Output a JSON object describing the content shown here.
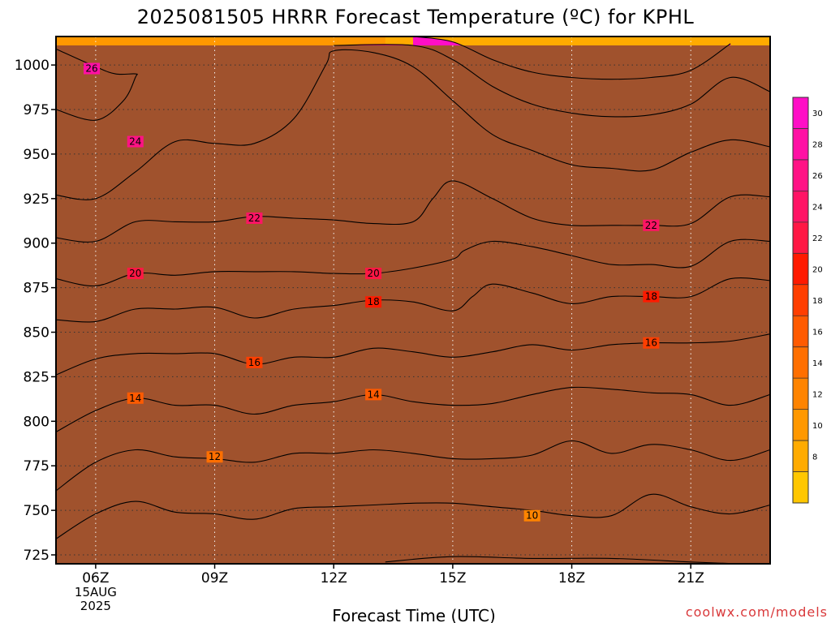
{
  "chart_data": {
    "type": "contour",
    "title": "2025081505 HRRR Forecast Temperature (ºC) for KPHL",
    "xlabel": "Forecast Time (UTC)",
    "ylabel": "",
    "credit": "coolwx.com/models",
    "x_ticks": [
      {
        "hour": 6,
        "label": "06Z",
        "sub": [
          "15AUG",
          "2025"
        ]
      },
      {
        "hour": 9,
        "label": "09Z"
      },
      {
        "hour": 12,
        "label": "12Z"
      },
      {
        "hour": 15,
        "label": "15Z"
      },
      {
        "hour": 18,
        "label": "18Z"
      },
      {
        "hour": 21,
        "label": "21Z"
      }
    ],
    "xlim": [
      5,
      23
    ],
    "y_ticks": [
      725,
      750,
      775,
      800,
      825,
      850,
      875,
      900,
      925,
      950,
      975,
      1000
    ],
    "ylim": [
      1016,
      720
    ],
    "y_units": "hPa (pressure level)",
    "grid": true,
    "colorbar": {
      "position": "right",
      "min": 6,
      "max": 32,
      "step": 2,
      "tick_labels": [
        8,
        10,
        12,
        14,
        16,
        18,
        20,
        22,
        24,
        26,
        28,
        30
      ],
      "colors": [
        "#ffc700",
        "#ffab00",
        "#ff9800",
        "#ff8400",
        "#ff6f00",
        "#ff5a00",
        "#ff3e00",
        "#ff1a00",
        "#ff1744",
        "#ff1465",
        "#ff1285",
        "#ff10a4",
        "#ff0ec6"
      ]
    },
    "contour_lines": [
      {
        "level": 8,
        "points": [
          [
            13.3,
            721
          ],
          [
            15,
            724
          ],
          [
            17,
            723
          ],
          [
            19,
            723
          ],
          [
            21,
            721
          ],
          [
            22.2,
            720
          ]
        ]
      },
      {
        "level": 10,
        "points": [
          [
            5,
            734
          ],
          [
            6,
            748
          ],
          [
            7,
            755
          ],
          [
            8,
            749
          ],
          [
            9,
            748
          ],
          [
            10,
            745
          ],
          [
            11,
            751
          ],
          [
            12,
            752
          ],
          [
            13,
            753
          ],
          [
            14,
            754
          ],
          [
            15,
            754
          ],
          [
            16,
            752
          ],
          [
            17,
            750
          ],
          [
            18,
            747
          ],
          [
            19,
            747
          ],
          [
            20,
            759
          ],
          [
            21,
            752
          ],
          [
            22,
            748
          ],
          [
            23,
            753
          ]
        ],
        "labels": [
          {
            "x": 17,
            "y": 747,
            "text": "10"
          }
        ]
      },
      {
        "level": 12,
        "points": [
          [
            5,
            761
          ],
          [
            6,
            777
          ],
          [
            7,
            784
          ],
          [
            8,
            780
          ],
          [
            9,
            779
          ],
          [
            10,
            777
          ],
          [
            11,
            782
          ],
          [
            12,
            782
          ],
          [
            13,
            784
          ],
          [
            14,
            782
          ],
          [
            15,
            779
          ],
          [
            16,
            779
          ],
          [
            17,
            781
          ],
          [
            18,
            789
          ],
          [
            19,
            782
          ],
          [
            20,
            787
          ],
          [
            21,
            784
          ],
          [
            22,
            778
          ],
          [
            23,
            784
          ]
        ],
        "labels": [
          {
            "x": 9,
            "y": 780,
            "text": "12"
          }
        ]
      },
      {
        "level": 14,
        "points": [
          [
            5,
            794
          ],
          [
            6,
            806
          ],
          [
            7,
            813
          ],
          [
            8,
            809
          ],
          [
            9,
            809
          ],
          [
            10,
            804
          ],
          [
            11,
            809
          ],
          [
            12,
            811
          ],
          [
            13,
            815
          ],
          [
            14,
            811
          ],
          [
            15,
            809
          ],
          [
            16,
            810
          ],
          [
            17,
            815
          ],
          [
            18,
            819
          ],
          [
            19,
            818
          ],
          [
            20,
            816
          ],
          [
            21,
            815
          ],
          [
            22,
            809
          ],
          [
            23,
            815
          ]
        ],
        "labels": [
          {
            "x": 7,
            "y": 813,
            "text": "14"
          },
          {
            "x": 13,
            "y": 815,
            "text": "14"
          }
        ]
      },
      {
        "level": 16,
        "points": [
          [
            5,
            826
          ],
          [
            6,
            835
          ],
          [
            7,
            838
          ],
          [
            8,
            838
          ],
          [
            9,
            838
          ],
          [
            10,
            832
          ],
          [
            11,
            836
          ],
          [
            12,
            836
          ],
          [
            13,
            841
          ],
          [
            14,
            839
          ],
          [
            15,
            836
          ],
          [
            16,
            839
          ],
          [
            17,
            843
          ],
          [
            18,
            840
          ],
          [
            19,
            843
          ],
          [
            20,
            844
          ],
          [
            21,
            844
          ],
          [
            22,
            845
          ],
          [
            23,
            849
          ]
        ],
        "labels": [
          {
            "x": 10,
            "y": 833,
            "text": "16"
          },
          {
            "x": 20,
            "y": 844,
            "text": "16"
          }
        ]
      },
      {
        "level": 18,
        "points": [
          [
            5,
            857
          ],
          [
            6,
            856
          ],
          [
            7,
            863
          ],
          [
            8,
            863
          ],
          [
            9,
            864
          ],
          [
            10,
            858
          ],
          [
            11,
            863
          ],
          [
            12,
            865
          ],
          [
            13,
            868
          ],
          [
            14,
            867
          ],
          [
            15,
            862
          ],
          [
            15.5,
            870
          ],
          [
            16,
            877
          ],
          [
            17,
            872
          ],
          [
            18,
            866
          ],
          [
            19,
            870
          ],
          [
            20,
            870
          ],
          [
            21,
            870
          ],
          [
            22,
            880
          ],
          [
            23,
            879
          ]
        ],
        "labels": [
          {
            "x": 13,
            "y": 867,
            "text": "18"
          },
          {
            "x": 20,
            "y": 870,
            "text": "18"
          }
        ]
      },
      {
        "level": 20,
        "points": [
          [
            5,
            880
          ],
          [
            6,
            876
          ],
          [
            7,
            883
          ],
          [
            8,
            882
          ],
          [
            9,
            884
          ],
          [
            10,
            884
          ],
          [
            11,
            884
          ],
          [
            12,
            883
          ],
          [
            13,
            883
          ],
          [
            14,
            886
          ],
          [
            15,
            891
          ],
          [
            15.3,
            896
          ],
          [
            16,
            901
          ],
          [
            17,
            898
          ],
          [
            18,
            893
          ],
          [
            19,
            888
          ],
          [
            20,
            888
          ],
          [
            21,
            887
          ],
          [
            22,
            901
          ],
          [
            23,
            901
          ]
        ],
        "labels": [
          {
            "x": 7,
            "y": 883,
            "text": "20"
          },
          {
            "x": 13,
            "y": 883,
            "text": "20"
          }
        ]
      },
      {
        "level": 22,
        "points": [
          [
            5,
            903
          ],
          [
            6,
            901
          ],
          [
            7,
            912
          ],
          [
            8,
            912
          ],
          [
            9,
            912
          ],
          [
            10,
            915
          ],
          [
            11,
            914
          ],
          [
            12,
            913
          ],
          [
            13,
            911
          ],
          [
            14,
            912
          ],
          [
            14.5,
            925
          ],
          [
            15,
            935
          ],
          [
            16,
            925
          ],
          [
            17,
            914
          ],
          [
            18,
            910
          ],
          [
            19,
            910
          ],
          [
            20,
            910
          ],
          [
            21,
            911
          ],
          [
            22,
            926
          ],
          [
            23,
            926
          ]
        ],
        "labels": [
          {
            "x": 10,
            "y": 914,
            "text": "22"
          },
          {
            "x": 20,
            "y": 910,
            "text": "22"
          }
        ]
      },
      {
        "level": 24,
        "points": [
          [
            5,
            927
          ],
          [
            6,
            925
          ],
          [
            7,
            940
          ],
          [
            8,
            957
          ],
          [
            9,
            956
          ],
          [
            10,
            956
          ],
          [
            11,
            970
          ],
          [
            11.8,
            1000
          ],
          [
            12,
            1008
          ],
          [
            13,
            1007
          ],
          [
            14,
            999
          ],
          [
            15,
            980
          ],
          [
            16,
            961
          ],
          [
            17,
            952
          ],
          [
            18,
            944
          ],
          [
            19,
            942
          ],
          [
            20,
            941
          ],
          [
            21,
            951
          ],
          [
            22,
            958
          ],
          [
            23,
            954
          ]
        ],
        "labels": [
          {
            "x": 7,
            "y": 957,
            "text": "24"
          }
        ]
      },
      {
        "level": 26,
        "points": [
          [
            5,
            975
          ],
          [
            6,
            969
          ],
          [
            6.7,
            980
          ],
          [
            7,
            993
          ],
          [
            7,
            995
          ],
          [
            6.5,
            995
          ],
          [
            6,
            999
          ],
          [
            5,
            1009
          ]
        ],
        "labels": [
          {
            "x": 5.9,
            "y": 998,
            "text": "26"
          }
        ]
      },
      {
        "level": 26,
        "points": [
          [
            12,
            1011
          ],
          [
            14,
            1011
          ],
          [
            15,
            1003
          ],
          [
            16,
            988
          ],
          [
            17,
            978
          ],
          [
            18,
            973
          ],
          [
            19,
            971
          ],
          [
            20,
            972
          ],
          [
            21,
            978
          ],
          [
            22,
            993
          ],
          [
            23,
            985
          ]
        ]
      },
      {
        "level": 28,
        "points": [
          [
            14,
            1016
          ],
          [
            15,
            1013
          ],
          [
            16,
            1003
          ],
          [
            17,
            996
          ],
          [
            18,
            993
          ],
          [
            19,
            992
          ],
          [
            20,
            993
          ],
          [
            21,
            997
          ],
          [
            22,
            1012
          ]
        ]
      }
    ]
  }
}
